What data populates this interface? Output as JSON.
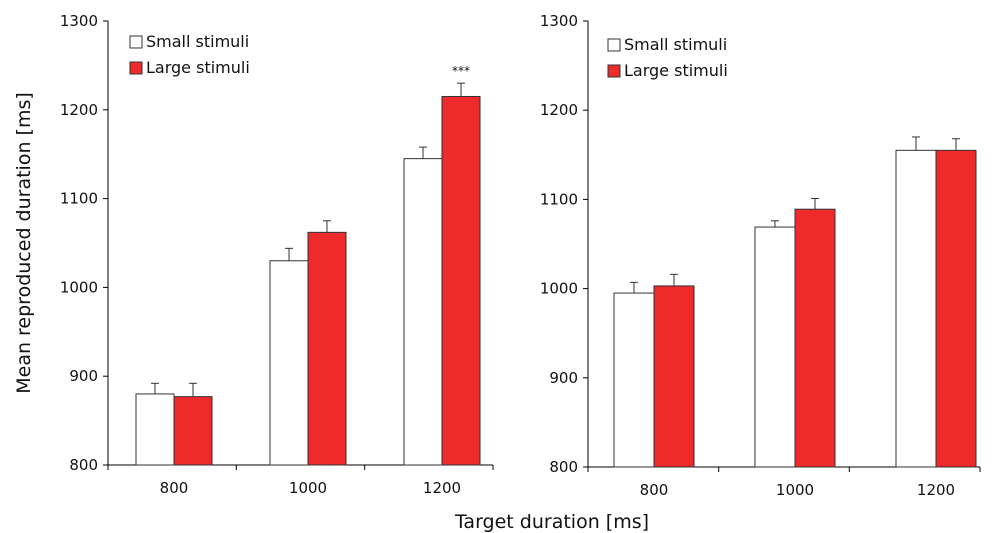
{
  "chart_data": [
    {
      "type": "bar",
      "categories": [
        "800",
        "1000",
        "1200"
      ],
      "series": [
        {
          "name": "Small stimuli",
          "values": [
            880,
            1030,
            1145
          ],
          "errors": [
            12,
            14,
            13
          ]
        },
        {
          "name": "Large stimuli",
          "values": [
            877,
            1062,
            1215
          ],
          "errors": [
            15,
            13,
            15
          ]
        }
      ],
      "ylabel": "Mean reproduced duration [ms]",
      "ylim": [
        800,
        1300
      ],
      "yticks": [
        "800",
        "900",
        "1000",
        "1100",
        "1200",
        "1300"
      ],
      "annotations": [
        {
          "text": "***",
          "category": "1200",
          "series": "Large stimuli"
        }
      ],
      "legend": "top-left"
    },
    {
      "type": "bar",
      "categories": [
        "800",
        "1000",
        "1200"
      ],
      "series": [
        {
          "name": "Small stimuli",
          "values": [
            995,
            1069,
            1155
          ],
          "errors": [
            12,
            7,
            15
          ]
        },
        {
          "name": "Large stimuli",
          "values": [
            1003,
            1089,
            1155
          ],
          "errors": [
            13,
            12,
            13
          ]
        }
      ],
      "ylim": [
        800,
        1300
      ],
      "yticks": [
        "800",
        "900",
        "1000",
        "1100",
        "1200",
        "1300"
      ],
      "legend": "top-left"
    }
  ],
  "xlabel": "Target duration [ms]",
  "colors": {
    "small_fill": "#ffffff",
    "large_fill": "#ee2a2a",
    "outline": "#333333"
  }
}
